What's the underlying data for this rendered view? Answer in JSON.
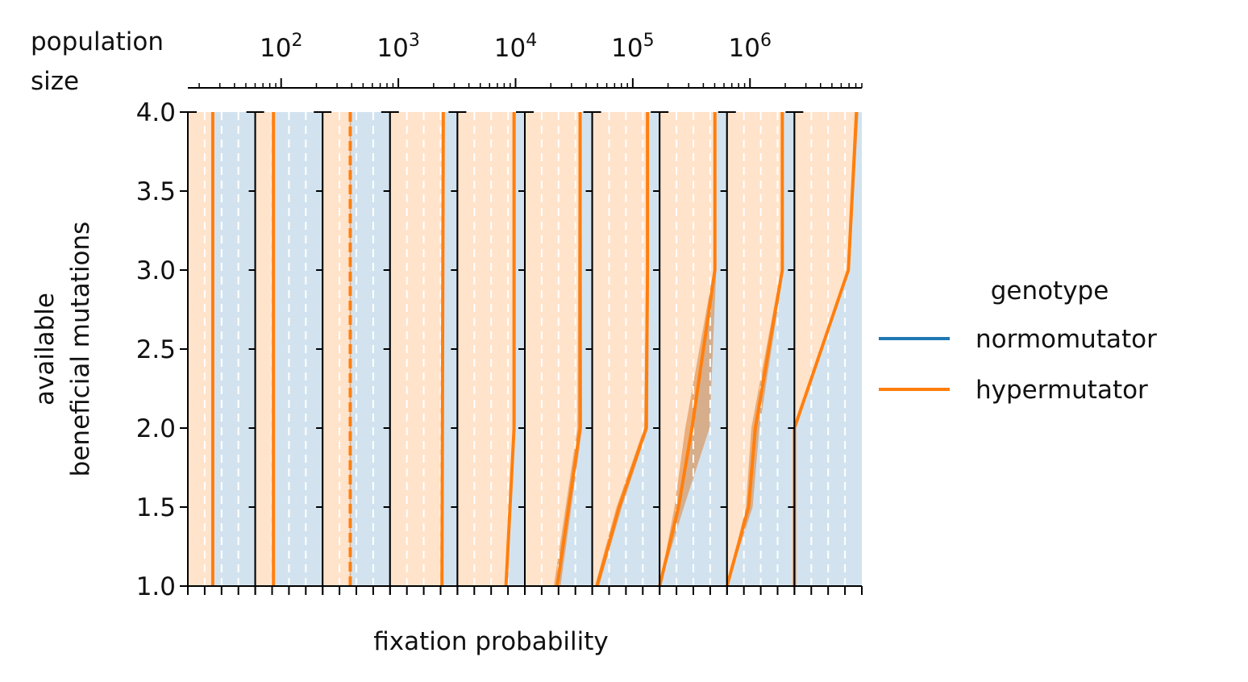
{
  "chart_data": {
    "type": "area",
    "top_axis": {
      "label_line1": "population",
      "label_line2": "size",
      "scale": "log",
      "tick_labels": [
        {
          "base": "10",
          "exp": "2",
          "value": 100
        },
        {
          "base": "10",
          "exp": "3",
          "value": 1000
        },
        {
          "base": "10",
          "exp": "4",
          "value": 10000
        },
        {
          "base": "10",
          "exp": "5",
          "value": 100000
        },
        {
          "base": "10",
          "exp": "6",
          "value": 1000000
        }
      ],
      "xlim": [
        16,
        9000000
      ]
    },
    "ylabel_line1": "available",
    "ylabel_line2": "beneficial mutations",
    "xlabel": "fixation probability",
    "ylim": [
      1.0,
      4.0
    ],
    "ytick_labels": [
      "1.0",
      "1.5",
      "2.0",
      "2.5",
      "3.0",
      "3.5",
      "4.0"
    ],
    "yticks": [
      1.0,
      1.5,
      2.0,
      2.5,
      3.0,
      3.5,
      4.0
    ],
    "panel_xlim": [
      0,
      1
    ],
    "panel_xticks": [
      0,
      0.25,
      0.5,
      0.75,
      1.0
    ],
    "facets": [
      {
        "hyper": [
          [
            0.37,
            1
          ],
          [
            0.37,
            4
          ]
        ],
        "band_lo": [
          [
            0.36,
            1
          ],
          [
            0.36,
            4
          ]
        ],
        "band_hi": [
          [
            0.38,
            1
          ],
          [
            0.38,
            4
          ]
        ],
        "style": "solid"
      },
      {
        "hyper": [
          [
            0.27,
            1
          ],
          [
            0.27,
            4
          ]
        ],
        "band_lo": [
          [
            0.26,
            1
          ],
          [
            0.26,
            4
          ]
        ],
        "band_hi": [
          [
            0.28,
            1
          ],
          [
            0.28,
            4
          ]
        ],
        "style": "solid"
      },
      {
        "hyper": [
          [
            0.41,
            1
          ],
          [
            0.41,
            4
          ]
        ],
        "band_lo": [
          [
            0.4,
            1
          ],
          [
            0.4,
            4
          ]
        ],
        "band_hi": [
          [
            0.42,
            1
          ],
          [
            0.42,
            4
          ]
        ],
        "style": "dashed"
      },
      {
        "hyper": [
          [
            0.77,
            1
          ],
          [
            0.79,
            4
          ]
        ],
        "band_lo": [
          [
            0.76,
            1
          ],
          [
            0.78,
            4
          ]
        ],
        "band_hi": [
          [
            0.78,
            1
          ],
          [
            0.8,
            4
          ]
        ],
        "style": "solid"
      },
      {
        "hyper": [
          [
            0.72,
            1
          ],
          [
            0.84,
            2
          ],
          [
            0.84,
            4
          ]
        ],
        "band_lo": [
          [
            0.71,
            1
          ],
          [
            0.83,
            2
          ],
          [
            0.83,
            4
          ]
        ],
        "band_hi": [
          [
            0.73,
            1
          ],
          [
            0.85,
            2
          ],
          [
            0.85,
            4
          ]
        ],
        "style": "solid"
      },
      {
        "hyper": [
          [
            0.48,
            1
          ],
          [
            0.82,
            2
          ],
          [
            0.82,
            4
          ]
        ],
        "band_lo": [
          [
            0.43,
            1
          ],
          [
            0.78,
            2
          ],
          [
            0.8,
            4
          ]
        ],
        "band_hi": [
          [
            0.53,
            1
          ],
          [
            0.85,
            2
          ],
          [
            0.84,
            4
          ]
        ],
        "style": "solid"
      },
      {
        "hyper": [
          [
            0.07,
            1
          ],
          [
            0.4,
            1.5
          ],
          [
            0.8,
            2
          ],
          [
            0.82,
            3
          ],
          [
            0.82,
            4
          ]
        ],
        "band_lo": [
          [
            0.04,
            1
          ],
          [
            0.36,
            1.5
          ],
          [
            0.77,
            2
          ],
          [
            0.8,
            3
          ],
          [
            0.8,
            4
          ]
        ],
        "band_hi": [
          [
            0.1,
            1
          ],
          [
            0.44,
            1.5
          ],
          [
            0.83,
            2
          ],
          [
            0.84,
            3
          ],
          [
            0.84,
            4
          ]
        ],
        "style": "solid"
      },
      {
        "hyper": [
          [
            0.0,
            1
          ],
          [
            0.28,
            1.5
          ],
          [
            0.48,
            2
          ],
          [
            0.82,
            3
          ],
          [
            0.82,
            4
          ]
        ],
        "band_lo": [
          [
            0.0,
            1
          ],
          [
            0.22,
            1.5
          ],
          [
            0.38,
            2
          ],
          [
            0.8,
            3
          ],
          [
            0.8,
            4
          ]
        ],
        "band_hi": [
          [
            0.0,
            1
          ],
          [
            0.36,
            1.5
          ],
          [
            0.74,
            2
          ],
          [
            0.84,
            3
          ],
          [
            0.84,
            4
          ]
        ],
        "style": "solid"
      },
      {
        "hyper": [
          [
            0.0,
            1
          ],
          [
            0.32,
            1.5
          ],
          [
            0.42,
            2
          ],
          [
            0.82,
            3
          ],
          [
            0.82,
            4
          ]
        ],
        "band_lo": [
          [
            0.0,
            1
          ],
          [
            0.28,
            1.5
          ],
          [
            0.36,
            2
          ],
          [
            0.8,
            3
          ],
          [
            0.8,
            4
          ]
        ],
        "band_hi": [
          [
            0.0,
            1
          ],
          [
            0.38,
            1.5
          ],
          [
            0.48,
            2
          ],
          [
            0.84,
            3
          ],
          [
            0.84,
            4
          ]
        ],
        "style": "solid"
      },
      {
        "hyper": [
          [
            0.0,
            1
          ],
          [
            0.0,
            2
          ],
          [
            0.8,
            3
          ],
          [
            0.92,
            4
          ]
        ],
        "band_lo": [
          [
            0.0,
            1
          ],
          [
            0.0,
            2
          ],
          [
            0.78,
            3
          ],
          [
            0.9,
            4
          ]
        ],
        "band_hi": [
          [
            0.0,
            1
          ],
          [
            0.0,
            2
          ],
          [
            0.82,
            3
          ],
          [
            0.95,
            4
          ]
        ],
        "style": "solid"
      }
    ],
    "legend": {
      "title": "genotype",
      "placement": "right",
      "items": [
        {
          "name": "normomutator",
          "color": "#1f77b4"
        },
        {
          "name": "hypermutator",
          "color": "#ff7f0e"
        }
      ]
    },
    "colors": {
      "hyper": "#ff7f0e",
      "hyper_fill": "#ffe3cb",
      "normo_fill": "#d2e3ef",
      "band_fill": "#d9843a",
      "grid_dash": "#ffffff"
    }
  }
}
